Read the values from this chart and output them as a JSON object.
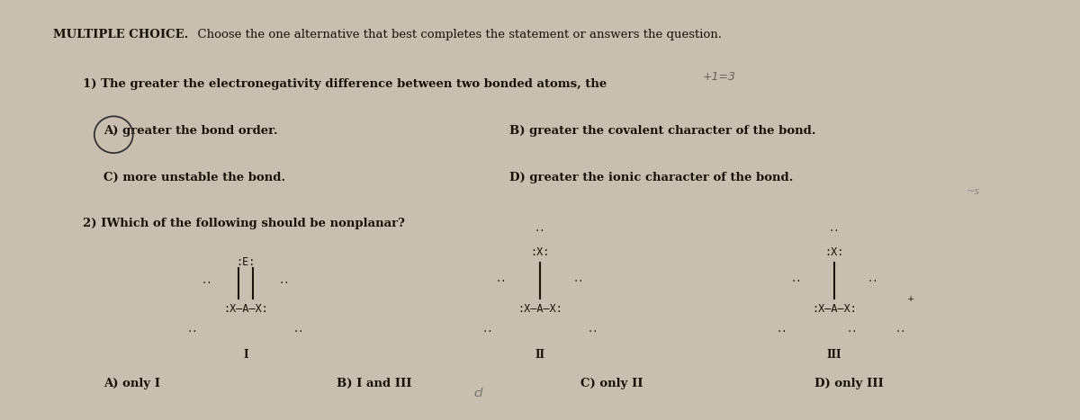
{
  "bg_color": "#c8bfb0",
  "paper_color": "#ede8e0",
  "title_bold": "MULTIPLE CHOICE.",
  "title_rest": "  Choose the one alternative that best completes the statement or answers the question.",
  "q1_text": "1) The greater the electronegativity difference between two bonded atoms, the",
  "q1_handwritten": "+1=3",
  "q1_A": "A) greater the bond order.",
  "q1_B": "B) greater the covalent character of the bond.",
  "q1_C": "C) more unstable the bond.",
  "q1_D": "D) greater the ionic character of the bond.",
  "q2_text": "2) IWhich of the following should be nonplanar?",
  "ans_A": "A) only I",
  "ans_B": "B) I and III",
  "ans_C": "C) only II",
  "ans_D": "D) only III",
  "text_color": "#1a1209",
  "font_size": 9.5
}
